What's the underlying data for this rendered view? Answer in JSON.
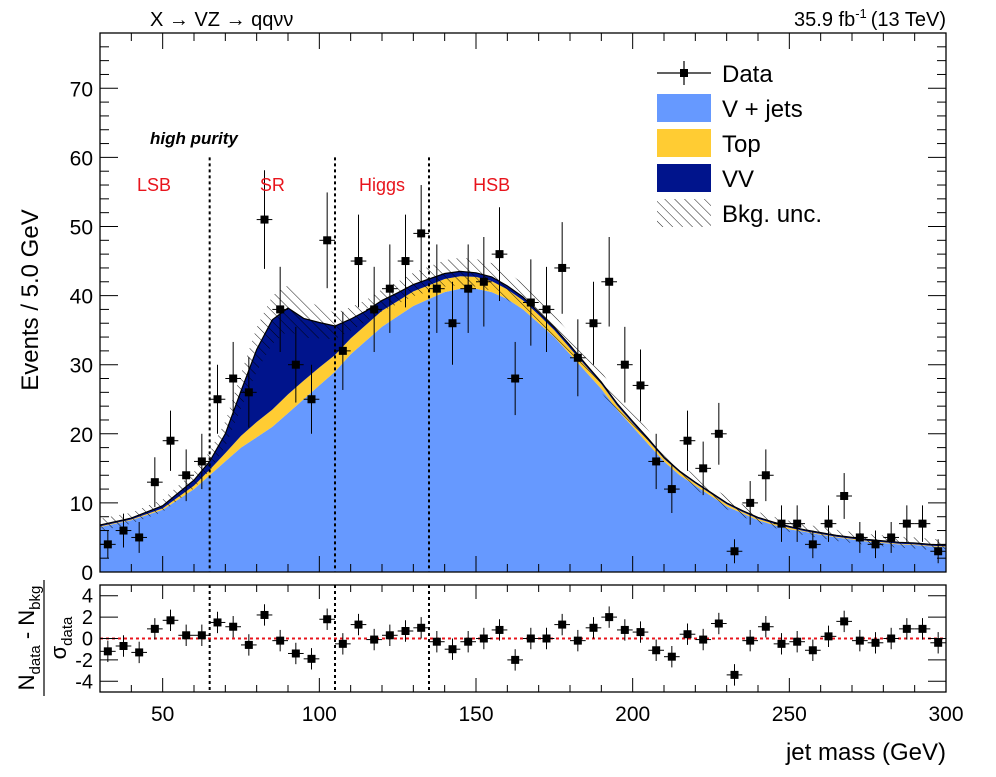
{
  "header": {
    "process": "X → VZ → qqνν",
    "lumi_base": "35.9 fb",
    "lumi_exp": "-1",
    "lumi_energy": "(13 TeV)"
  },
  "labels": {
    "category": "high purity",
    "regions": [
      "LSB",
      "SR",
      "Higgs",
      "HSB"
    ],
    "region_color": "#e8141c"
  },
  "legend": {
    "items": [
      {
        "key": "data",
        "label": "Data"
      },
      {
        "key": "vjets",
        "label": "V + jets",
        "color": "#6699ff"
      },
      {
        "key": "top",
        "label": "Top",
        "color": "#ffcc33"
      },
      {
        "key": "vv",
        "label": "VV",
        "color": "#00148c"
      },
      {
        "key": "unc",
        "label": "Bkg. unc."
      }
    ]
  },
  "chart_data": [
    {
      "type": "area",
      "xlabel": "jet mass (GeV)",
      "ylabel": "Events / 5.0 GeV",
      "xlim": [
        30,
        300
      ],
      "ylim": [
        0,
        78
      ],
      "xticks": [
        50,
        100,
        150,
        200,
        250,
        300
      ],
      "yticks": [
        0,
        10,
        20,
        30,
        40,
        50,
        60,
        70
      ],
      "region_boundaries": [
        65,
        105,
        135
      ],
      "series": [
        {
          "name": "V + jets",
          "color": "#6699ff",
          "x": [
            30,
            40,
            50,
            60,
            65,
            70,
            75,
            80,
            85,
            90,
            95,
            100,
            105,
            110,
            115,
            120,
            125,
            130,
            135,
            140,
            145,
            150,
            155,
            160,
            165,
            170,
            175,
            180,
            185,
            190,
            195,
            200,
            205,
            210,
            215,
            220,
            225,
            230,
            235,
            240,
            245,
            250,
            255,
            260,
            265,
            270,
            275,
            280,
            285,
            290,
            295,
            300
          ],
          "y": [
            6.5,
            7.5,
            9,
            12,
            14,
            16,
            18,
            19.5,
            21,
            23,
            25,
            27,
            29,
            31.5,
            33.5,
            35.5,
            37,
            38.5,
            39.5,
            40.5,
            41,
            41,
            40.5,
            39.5,
            38,
            36,
            34,
            31.5,
            29,
            26.5,
            23.5,
            21,
            18.5,
            16,
            14,
            12.5,
            11,
            9.5,
            8.5,
            7.5,
            6.8,
            6.2,
            5.8,
            5.4,
            5,
            4.7,
            4.4,
            4.2,
            4,
            3.9,
            3.7,
            3.6
          ]
        },
        {
          "name": "Top",
          "color": "#ffcc33",
          "x": [
            30,
            40,
            50,
            60,
            65,
            70,
            75,
            80,
            85,
            90,
            95,
            100,
            105,
            110,
            115,
            120,
            125,
            130,
            135,
            140,
            145,
            150,
            155,
            160,
            165,
            170,
            175,
            180,
            185,
            190,
            195,
            200,
            205,
            210,
            215,
            220,
            225,
            230,
            235,
            240,
            245,
            250,
            255,
            260,
            265,
            270,
            275,
            280,
            285,
            290,
            295,
            300
          ],
          "y": [
            0.1,
            0.1,
            0.2,
            0.5,
            0.8,
            1.2,
            1.7,
            2.2,
            2.5,
            2.7,
            2.7,
            2.6,
            2.4,
            2.3,
            2.3,
            2.3,
            2.2,
            2.1,
            2,
            1.9,
            1.8,
            1.7,
            1.6,
            1.4,
            1.3,
            1.2,
            1,
            0.9,
            0.8,
            0.7,
            0.6,
            0.5,
            0.5,
            0.4,
            0.4,
            0.3,
            0.3,
            0.3,
            0.2,
            0.2,
            0.2,
            0.2,
            0.1,
            0.1,
            0.1,
            0.1,
            0.1,
            0.1,
            0.1,
            0.1,
            0.1,
            0.1
          ]
        },
        {
          "name": "VV",
          "color": "#00148c",
          "x": [
            30,
            40,
            50,
            60,
            65,
            70,
            75,
            80,
            85,
            90,
            95,
            100,
            105,
            110,
            115,
            120,
            125,
            130,
            135,
            140,
            145,
            150,
            155,
            160,
            165,
            170,
            175,
            180,
            185,
            190,
            195,
            200,
            205,
            210,
            215,
            220,
            225,
            230,
            235,
            240,
            245,
            250,
            255,
            260,
            265,
            270,
            275,
            280,
            285,
            290,
            295,
            300
          ],
          "y": [
            0.2,
            0.2,
            0.4,
            0.8,
            1.2,
            2.8,
            6.5,
            10.5,
            13,
            12.5,
            9,
            6.5,
            4.2,
            2.8,
            2,
            1.5,
            1.2,
            1,
            0.9,
            0.8,
            0.7,
            0.6,
            0.6,
            0.5,
            0.5,
            0.4,
            0.4,
            0.4,
            0.3,
            0.3,
            0.3,
            0.3,
            0.3,
            0.2,
            0.2,
            0.2,
            0.2,
            0.2,
            0.2,
            0.2,
            0.2,
            0.2,
            0.2,
            0.2,
            0.2,
            0.2,
            0.2,
            0.2,
            0.2,
            0.2,
            0.2,
            0.2
          ]
        },
        {
          "name": "Bkg. unc.",
          "x": [
            30,
            40,
            50,
            60,
            65,
            70,
            75,
            80,
            85,
            90,
            95,
            100,
            105,
            110,
            115,
            120,
            125,
            130,
            135,
            140,
            145,
            150,
            155,
            160,
            165,
            170,
            175,
            180,
            185,
            190,
            195,
            200,
            205,
            210,
            215,
            220,
            225,
            230,
            235,
            240,
            245,
            250,
            255,
            260,
            265,
            270,
            275,
            280,
            285,
            290,
            295,
            300
          ],
          "y": [
            0.9,
            0.8,
            0.9,
            1.2,
            1.4,
            1.8,
            2.5,
            3.2,
            3.5,
            3.3,
            2.8,
            2.3,
            1.9,
            1.7,
            1.6,
            1.6,
            1.6,
            1.7,
            1.8,
            1.9,
            2,
            2,
            2,
            2,
            2,
            1.9,
            1.8,
            1.7,
            1.6,
            1.5,
            1.4,
            1.3,
            1.2,
            1.1,
            1,
            1,
            0.9,
            0.9,
            0.9,
            0.8,
            0.8,
            0.8,
            0.8,
            0.8,
            0.8,
            0.8,
            0.8,
            0.8,
            0.8,
            0.8,
            0.8,
            0.8
          ]
        },
        {
          "name": "Data",
          "x": [
            32.5,
            37.5,
            42.5,
            47.5,
            52.5,
            57.5,
            62.5,
            67.5,
            72.5,
            77.5,
            82.5,
            87.5,
            92.5,
            97.5,
            102.5,
            107.5,
            112.5,
            117.5,
            122.5,
            127.5,
            132.5,
            137.5,
            142.5,
            147.5,
            152.5,
            157.5,
            162.5,
            167.5,
            172.5,
            177.5,
            182.5,
            187.5,
            192.5,
            197.5,
            202.5,
            207.5,
            212.5,
            217.5,
            222.5,
            227.5,
            232.5,
            237.5,
            242.5,
            247.5,
            252.5,
            257.5,
            262.5,
            267.5,
            272.5,
            277.5,
            282.5,
            287.5,
            292.5,
            297.5
          ],
          "y": [
            4,
            6,
            5,
            13,
            19,
            14,
            16,
            25,
            28,
            26,
            51,
            38,
            30,
            25,
            48,
            32,
            45,
            38,
            41,
            45,
            49,
            41,
            36,
            41,
            42,
            46,
            28,
            39,
            38,
            44,
            31,
            36,
            42,
            30,
            27,
            16,
            12,
            19,
            15,
            20,
            3,
            10,
            14,
            7,
            7,
            4,
            7,
            11,
            5,
            4,
            5,
            7,
            7,
            3
          ]
        }
      ]
    },
    {
      "type": "scatter",
      "ylabel_top": "N",
      "ylabel_top_sub1": "data",
      "ylabel_minus": " - N",
      "ylabel_top_sub2": "bkg",
      "ylabel_bottom": "σ",
      "ylabel_bottom_sub": "data",
      "xlim": [
        30,
        300
      ],
      "ylim": [
        -5,
        5
      ],
      "yticks": [
        -4,
        -2,
        0,
        2,
        4
      ],
      "reference_line": 0,
      "series": [
        {
          "name": "pull",
          "x": [
            32.5,
            37.5,
            42.5,
            47.5,
            52.5,
            57.5,
            62.5,
            67.5,
            72.5,
            77.5,
            82.5,
            87.5,
            92.5,
            97.5,
            102.5,
            107.5,
            112.5,
            117.5,
            122.5,
            127.5,
            132.5,
            137.5,
            142.5,
            147.5,
            152.5,
            157.5,
            162.5,
            167.5,
            172.5,
            177.5,
            182.5,
            187.5,
            192.5,
            197.5,
            202.5,
            207.5,
            212.5,
            217.5,
            222.5,
            227.5,
            232.5,
            237.5,
            242.5,
            247.5,
            252.5,
            257.5,
            262.5,
            267.5,
            272.5,
            277.5,
            282.5,
            287.5,
            292.5,
            297.5
          ],
          "y": [
            -1.2,
            -0.7,
            -1.3,
            0.9,
            1.7,
            0.3,
            0.3,
            1.5,
            1.1,
            -0.6,
            2.2,
            -0.2,
            -1.4,
            -1.9,
            1.8,
            -0.5,
            1.3,
            -0.1,
            0.3,
            0.7,
            1.0,
            -0.3,
            -1.0,
            -0.3,
            0.0,
            0.8,
            -2.0,
            0.0,
            0.0,
            1.3,
            -0.2,
            1.0,
            2.0,
            0.8,
            0.6,
            -1.1,
            -1.7,
            0.4,
            -0.1,
            1.4,
            -3.4,
            -0.2,
            1.1,
            -0.5,
            -0.3,
            -1.1,
            0.2,
            1.6,
            -0.2,
            -0.4,
            0.0,
            0.9,
            0.9,
            -0.4
          ]
        }
      ]
    }
  ]
}
